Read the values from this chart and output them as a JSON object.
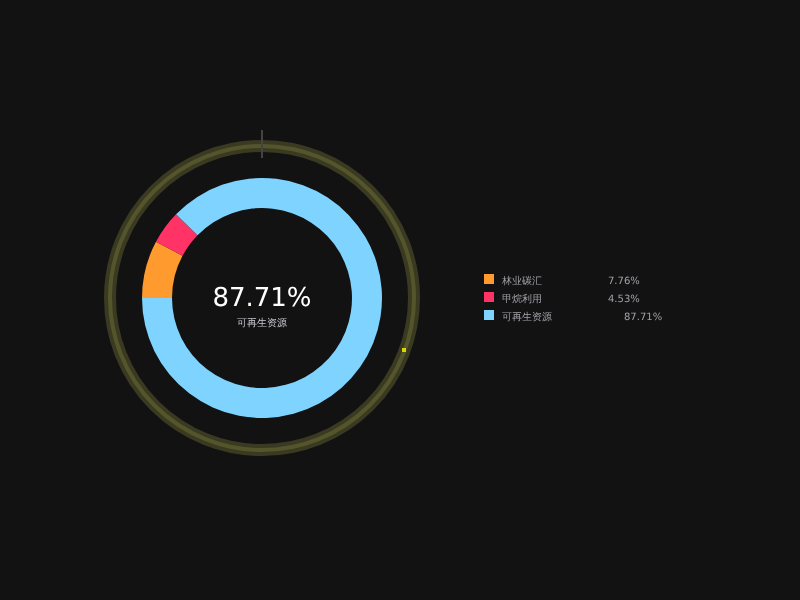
{
  "chart_data": {
    "type": "donut",
    "categories": [
      "林业碳汇",
      "甲烷利用",
      "可再生资源"
    ],
    "values": [
      7.76,
      4.53,
      87.71
    ],
    "colors": [
      "#ff9a2e",
      "#ff3366",
      "#7fd4ff"
    ],
    "value_labels": [
      "7.76%",
      "4.53%",
      "87.71%"
    ],
    "legend": "right",
    "annotations": [
      "87.71%",
      "可再生资源"
    ]
  }
}
